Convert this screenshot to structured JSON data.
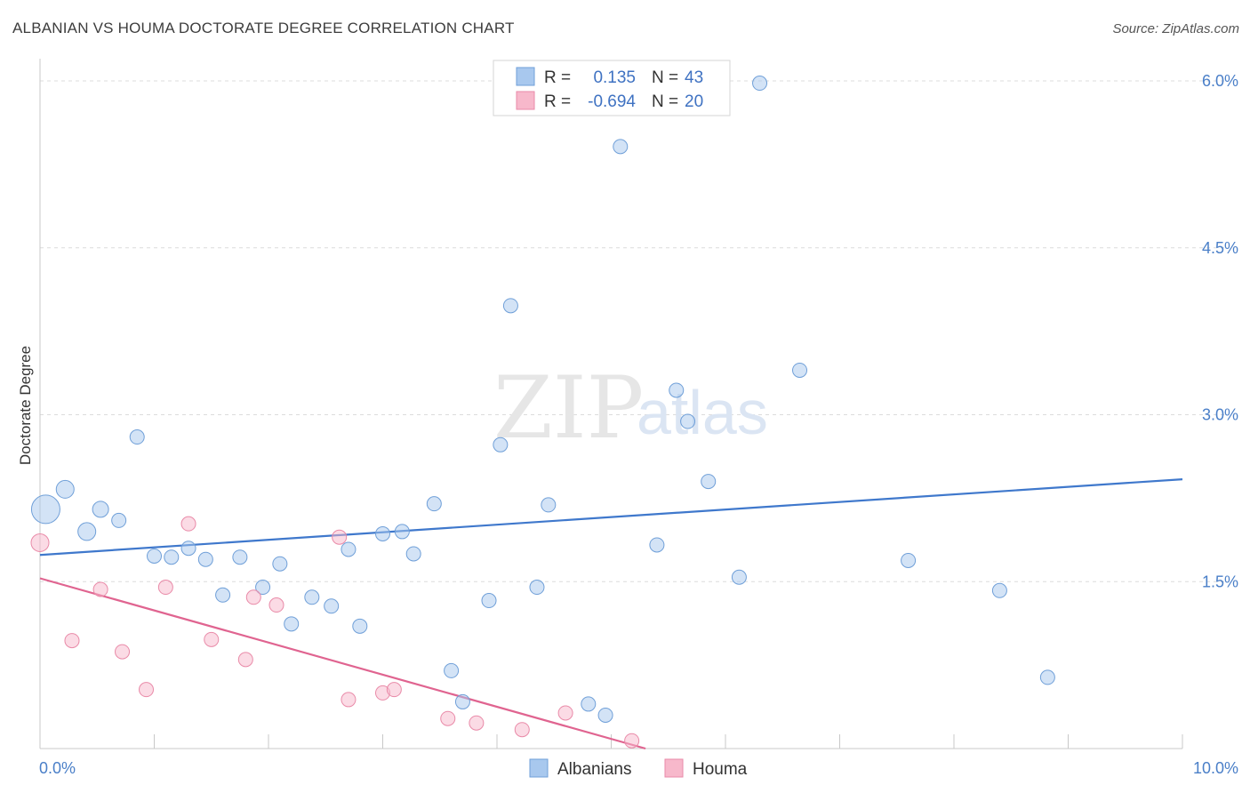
{
  "title": "ALBANIAN VS HOUMA DOCTORATE DEGREE CORRELATION CHART",
  "source": "Source: ZipAtlas.com",
  "watermark": {
    "zip": "ZIP",
    "atlas": "atlas"
  },
  "chart_data": {
    "type": "scatter",
    "title": "ALBANIAN VS HOUMA DOCTORATE DEGREE CORRELATION CHART",
    "xlabel": "",
    "ylabel": "Doctorate Degree",
    "xlim": [
      0,
      10
    ],
    "ylim": [
      0,
      6.2
    ],
    "x_tick_labels": [
      "0.0%",
      "10.0%"
    ],
    "y_ticks": [
      1.5,
      3.0,
      4.5,
      6.0
    ],
    "y_tick_labels": [
      "1.5%",
      "3.0%",
      "4.5%",
      "6.0%"
    ],
    "grid": true,
    "legend_position": "top-center",
    "series": [
      {
        "name": "Albanians",
        "color": "#a8c8ee",
        "stroke": "#6f9fd8",
        "line_color": "#3f78cc",
        "R": "0.135",
        "N": "43",
        "trend": [
          [
            0,
            1.74
          ],
          [
            10,
            2.42
          ]
        ],
        "points": [
          {
            "x": 0.05,
            "y": 2.15,
            "s": 16
          },
          {
            "x": 0.22,
            "y": 2.33,
            "s": 10
          },
          {
            "x": 0.41,
            "y": 1.95,
            "s": 10
          },
          {
            "x": 0.53,
            "y": 2.15,
            "s": 9
          },
          {
            "x": 0.69,
            "y": 2.05,
            "s": 8
          },
          {
            "x": 0.85,
            "y": 2.8,
            "s": 8
          },
          {
            "x": 1.0,
            "y": 1.73,
            "s": 8
          },
          {
            "x": 1.15,
            "y": 1.72,
            "s": 8
          },
          {
            "x": 1.3,
            "y": 1.8,
            "s": 8
          },
          {
            "x": 1.45,
            "y": 1.7,
            "s": 8
          },
          {
            "x": 1.6,
            "y": 1.38,
            "s": 8
          },
          {
            "x": 1.75,
            "y": 1.72,
            "s": 8
          },
          {
            "x": 1.95,
            "y": 1.45,
            "s": 8
          },
          {
            "x": 2.1,
            "y": 1.66,
            "s": 8
          },
          {
            "x": 2.2,
            "y": 1.12,
            "s": 8
          },
          {
            "x": 2.38,
            "y": 1.36,
            "s": 8
          },
          {
            "x": 2.55,
            "y": 1.28,
            "s": 8
          },
          {
            "x": 2.7,
            "y": 1.79,
            "s": 8
          },
          {
            "x": 2.8,
            "y": 1.1,
            "s": 8
          },
          {
            "x": 3.0,
            "y": 1.93,
            "s": 8
          },
          {
            "x": 3.17,
            "y": 1.95,
            "s": 8
          },
          {
            "x": 3.27,
            "y": 1.75,
            "s": 8
          },
          {
            "x": 3.45,
            "y": 2.2,
            "s": 8
          },
          {
            "x": 3.6,
            "y": 0.7,
            "s": 8
          },
          {
            "x": 3.7,
            "y": 0.42,
            "s": 8
          },
          {
            "x": 3.93,
            "y": 1.33,
            "s": 8
          },
          {
            "x": 4.03,
            "y": 2.73,
            "s": 8
          },
          {
            "x": 4.12,
            "y": 3.98,
            "s": 8
          },
          {
            "x": 4.35,
            "y": 1.45,
            "s": 8
          },
          {
            "x": 4.45,
            "y": 2.19,
            "s": 8
          },
          {
            "x": 4.8,
            "y": 0.4,
            "s": 8
          },
          {
            "x": 4.95,
            "y": 0.3,
            "s": 8
          },
          {
            "x": 5.08,
            "y": 5.41,
            "s": 8
          },
          {
            "x": 5.4,
            "y": 1.83,
            "s": 8
          },
          {
            "x": 5.57,
            "y": 3.22,
            "s": 8
          },
          {
            "x": 5.67,
            "y": 2.94,
            "s": 8
          },
          {
            "x": 5.85,
            "y": 2.4,
            "s": 8
          },
          {
            "x": 6.12,
            "y": 1.54,
            "s": 8
          },
          {
            "x": 6.3,
            "y": 5.98,
            "s": 8
          },
          {
            "x": 6.65,
            "y": 3.4,
            "s": 8
          },
          {
            "x": 7.6,
            "y": 1.69,
            "s": 8
          },
          {
            "x": 8.4,
            "y": 1.42,
            "s": 8
          },
          {
            "x": 8.82,
            "y": 0.64,
            "s": 8
          }
        ]
      },
      {
        "name": "Houma",
        "color": "#f7b8cb",
        "stroke": "#e98aa8",
        "line_color": "#e06490",
        "R": "-0.694",
        "N": "20",
        "trend": [
          [
            0,
            1.53
          ],
          [
            5.3,
            0.0
          ]
        ],
        "points": [
          {
            "x": 0.0,
            "y": 1.85,
            "s": 10
          },
          {
            "x": 0.28,
            "y": 0.97,
            "s": 8
          },
          {
            "x": 0.53,
            "y": 1.43,
            "s": 8
          },
          {
            "x": 0.72,
            "y": 0.87,
            "s": 8
          },
          {
            "x": 0.93,
            "y": 0.53,
            "s": 8
          },
          {
            "x": 1.1,
            "y": 1.45,
            "s": 8
          },
          {
            "x": 1.3,
            "y": 2.02,
            "s": 8
          },
          {
            "x": 1.5,
            "y": 0.98,
            "s": 8
          },
          {
            "x": 1.8,
            "y": 0.8,
            "s": 8
          },
          {
            "x": 1.87,
            "y": 1.36,
            "s": 8
          },
          {
            "x": 2.07,
            "y": 1.29,
            "s": 8
          },
          {
            "x": 2.62,
            "y": 1.9,
            "s": 8
          },
          {
            "x": 2.7,
            "y": 0.44,
            "s": 8
          },
          {
            "x": 3.0,
            "y": 0.5,
            "s": 8
          },
          {
            "x": 3.1,
            "y": 0.53,
            "s": 8
          },
          {
            "x": 3.57,
            "y": 0.27,
            "s": 8
          },
          {
            "x": 3.82,
            "y": 0.23,
            "s": 8
          },
          {
            "x": 4.22,
            "y": 0.17,
            "s": 8
          },
          {
            "x": 4.6,
            "y": 0.32,
            "s": 8
          },
          {
            "x": 5.18,
            "y": 0.07,
            "s": 8
          }
        ]
      }
    ]
  },
  "legend": {
    "r_label": "R =",
    "n_label": "N ="
  }
}
